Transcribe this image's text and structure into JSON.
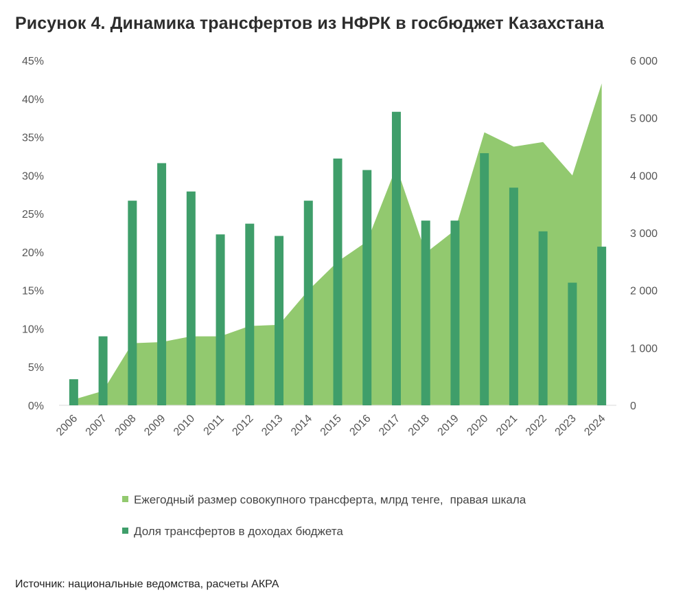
{
  "title": "Рисунок 4. Динамика трансфертов из НФРК в госбюджет Казахстана",
  "source": "Источник: национальные ведомства, расчеты АКРА",
  "colors": {
    "area": "#92c96f",
    "bar": "#3f9e6a",
    "text": "#555555"
  },
  "chart_data": {
    "type": "bar+area",
    "categories": [
      "2006",
      "2007",
      "2008",
      "2009",
      "2010",
      "2011",
      "2012",
      "2013",
      "2014",
      "2015",
      "2016",
      "2017",
      "2018",
      "2019",
      "2020",
      "2021",
      "2022",
      "2023",
      "2024"
    ],
    "series": [
      {
        "name": "Доля трансфертов в доходах бюджета",
        "type": "bar",
        "axis": "left",
        "values": [
          3.4,
          9.0,
          26.7,
          31.6,
          27.9,
          22.3,
          23.7,
          22.1,
          26.7,
          32.2,
          30.7,
          38.3,
          24.1,
          24.1,
          32.9,
          28.4,
          22.7,
          16.0,
          20.7
        ]
      },
      {
        "name": "Ежегодный размер совокупного трансферта, млрд тенге,",
        "type": "area",
        "axis": "right",
        "values": [
          100,
          250,
          1080,
          1100,
          1200,
          1200,
          1380,
          1400,
          2000,
          2500,
          2850,
          4150,
          2650,
          3050,
          4750,
          4500,
          4580,
          4000,
          5600
        ]
      }
    ],
    "y_left": {
      "ticks": [
        "0%",
        "5%",
        "10%",
        "15%",
        "20%",
        "25%",
        "30%",
        "35%",
        "40%",
        "45%"
      ],
      "range": [
        0,
        45
      ]
    },
    "y_right": {
      "ticks": [
        "0",
        "1 000",
        "2 000",
        "3 000",
        "4 000",
        "5 000",
        "6 000"
      ],
      "range": [
        0,
        6000
      ]
    },
    "legend": {
      "area_label": "Ежегодный размер совокупного трансферта, млрд тенге,",
      "area_note": "правая шкала",
      "bar_label": "Доля трансфертов в доходах бюджета"
    }
  }
}
